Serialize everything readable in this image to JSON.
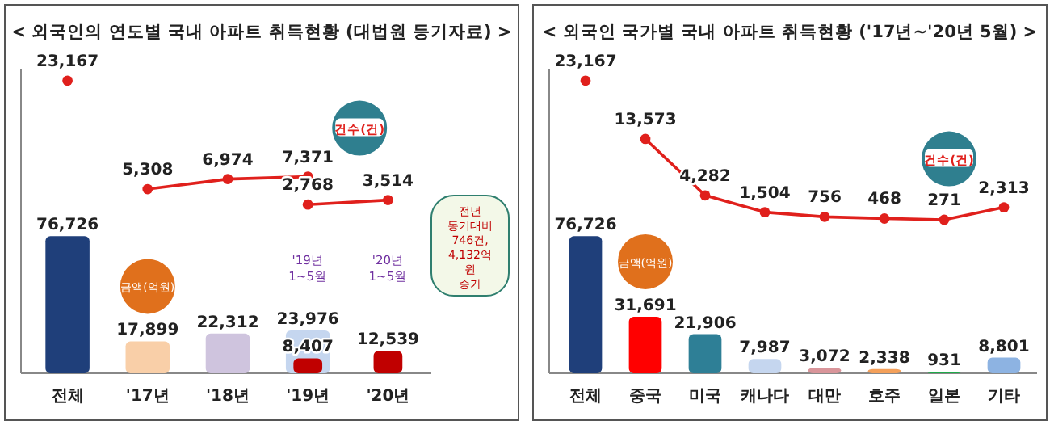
{
  "chart_data": [
    {
      "type": "bar",
      "title": "< 외국인의 연도별 국내 아파트 취득현황 (대법원 등기자료) >",
      "categories": [
        "전체",
        "'17년",
        "'18년",
        "'19년",
        "'20년"
      ],
      "ylim": [
        0,
        170000
      ],
      "y2lim": [
        -25000,
        25000
      ],
      "tick_labels": "x",
      "series": [
        {
          "type": "bar",
          "name": "금액(억원)",
          "colors": [
            "#1f3f7a",
            "#f9cfa8",
            "#cfc4de",
            "#c5d6ef",
            null
          ],
          "values": [
            76726,
            17899,
            22312,
            23976,
            null
          ],
          "value_labels": [
            "76,726",
            "17,899",
            "22,312",
            "23,976",
            null
          ]
        },
        {
          "type": "bar",
          "colors": [
            null,
            null,
            null,
            "#c00000",
            "#c00000"
          ],
          "values": [
            null,
            null,
            null,
            8407,
            12539
          ],
          "value_labels": [
            null,
            null,
            null,
            "8,407",
            "12,539"
          ]
        },
        {
          "type": "scatter",
          "axis": "y2",
          "color": "#e0201c",
          "marker": "circle",
          "values": [
            23167,
            null,
            null,
            null,
            null
          ],
          "value_labels": [
            "23,167",
            null,
            null,
            null,
            null
          ]
        },
        {
          "type": "line",
          "name": "건수(건)",
          "axis": "y2",
          "color": "#e0201c",
          "marker": "circle",
          "values": [
            null,
            5308,
            6974,
            7371,
            null
          ],
          "value_labels": [
            null,
            "5,308",
            "6,974",
            "7,371",
            null
          ]
        },
        {
          "type": "line",
          "axis": "y2",
          "color": "#e0201c",
          "marker": "circle",
          "values": [
            null,
            null,
            null,
            2768,
            3514
          ],
          "value_labels": [
            null,
            null,
            null,
            "2,768",
            "3,514"
          ]
        }
      ],
      "annotations": [
        "'19년 1~5월",
        "'20년 1~5월",
        "전년 동기대비 746건, 4,132억 원 증가"
      ]
    },
    {
      "type": "bar",
      "title": "< 외국인 국가별 국내 아파트 취득현황 ('17년~'20년 5월) >",
      "categories": [
        "전체",
        "중국",
        "미국",
        "캐나다",
        "대만",
        "호주",
        "일본",
        "기타"
      ],
      "ylim": [
        0,
        170000
      ],
      "y2lim": [
        -25000,
        25000
      ],
      "tick_labels": "x",
      "series": [
        {
          "type": "bar",
          "name": "금액(억원)",
          "colors": [
            "#1f3f7a",
            "#ff0000",
            "#2e7f96",
            "#c5d6ef",
            "#d9959a",
            "#f4a05a",
            "#1faa4a",
            "#8db3e2"
          ],
          "values": [
            76726,
            31691,
            21906,
            7987,
            3072,
            2338,
            931,
            8801
          ],
          "value_labels": [
            "76,726",
            "31,691",
            "21,906",
            "7,987",
            "3,072",
            "2,338",
            "931",
            "8,801"
          ]
        },
        {
          "type": "scatter",
          "axis": "y2",
          "color": "#e0201c",
          "marker": "circle",
          "values": [
            23167,
            null,
            null,
            null,
            null,
            null,
            null,
            null
          ],
          "value_labels": [
            "23,167",
            null,
            null,
            null,
            null,
            null,
            null,
            null
          ]
        },
        {
          "type": "line",
          "name": "건수(건)",
          "axis": "y2",
          "color": "#e0201c",
          "marker": "circle",
          "values": [
            null,
            13573,
            4282,
            1504,
            756,
            468,
            271,
            2313
          ],
          "value_labels": [
            null,
            "13,573",
            "4,282",
            "1,504",
            "756",
            "468",
            "271",
            "2,313"
          ]
        }
      ]
    }
  ]
}
